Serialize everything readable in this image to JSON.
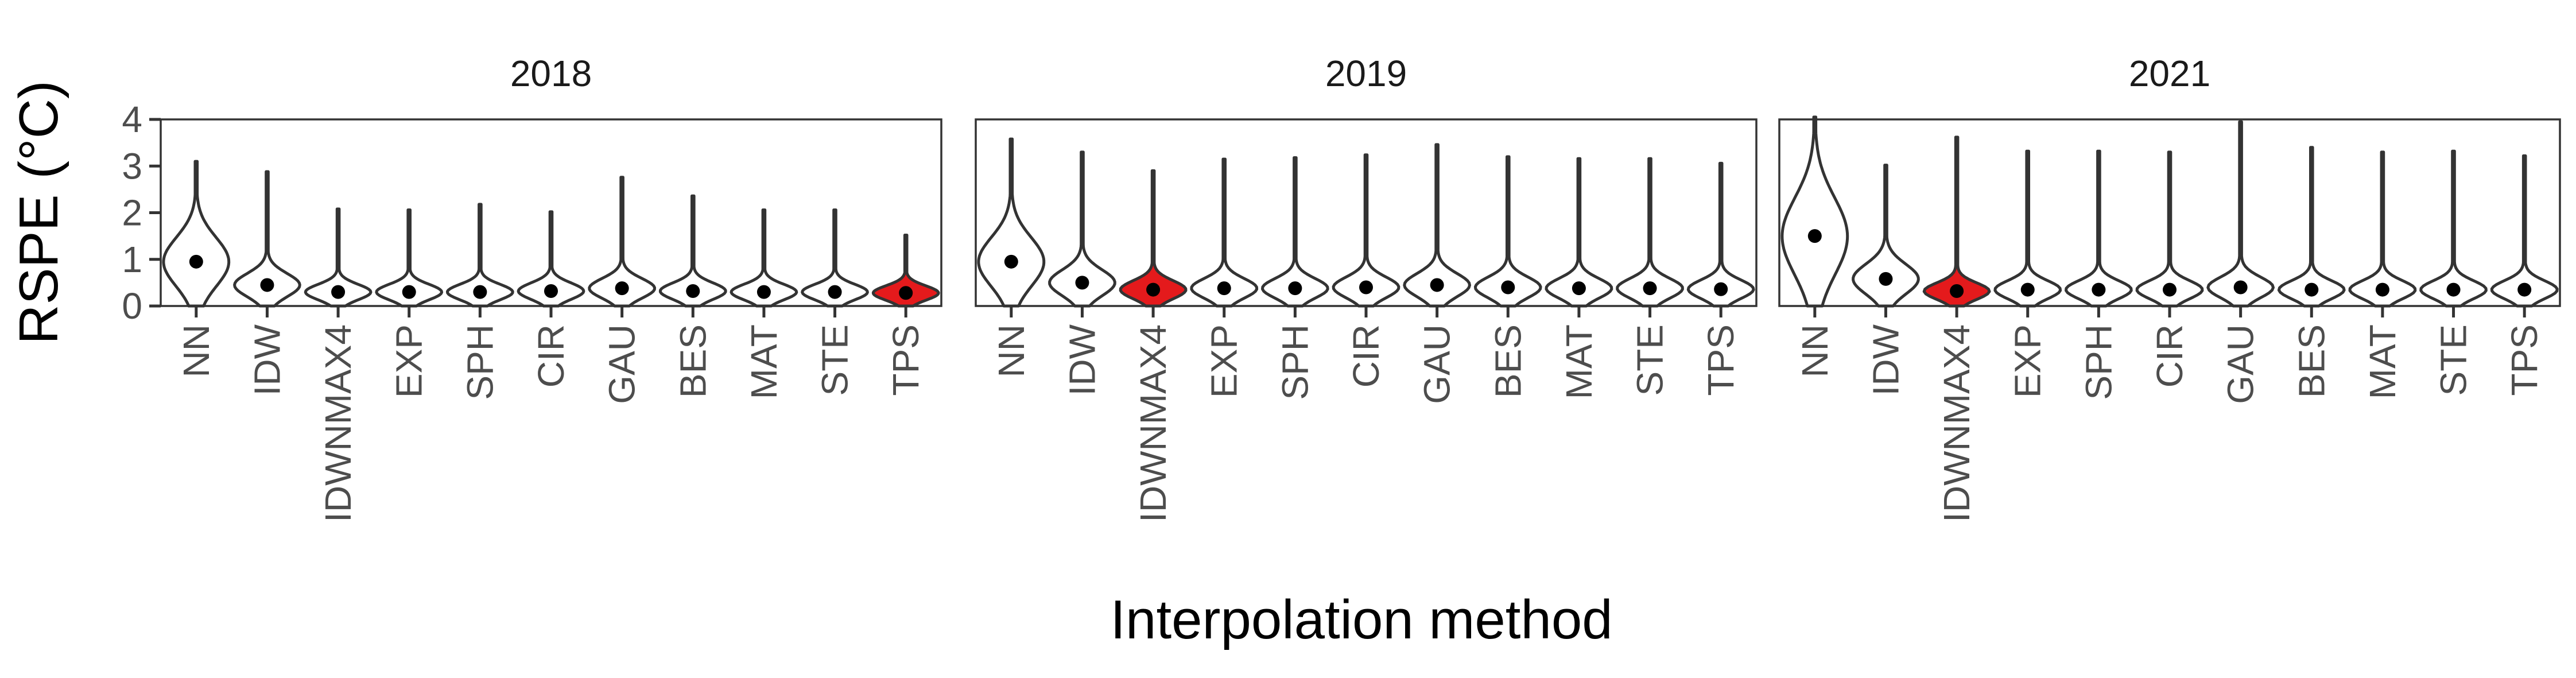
{
  "chart_data": {
    "type": "violin",
    "xlabel": "Interpolation method",
    "ylabel": "RSPE (°C)",
    "ylim": [
      0,
      4
    ],
    "yticks": [
      0,
      1,
      2,
      3,
      4
    ],
    "grid": false,
    "categories": [
      "NN",
      "IDW",
      "IDWNMAX4",
      "EXP",
      "SPH",
      "CIR",
      "GAU",
      "BES",
      "MAT",
      "STE",
      "TPS"
    ],
    "colors": {
      "highlight": "#e41a1c",
      "default_fill": "#ffffff",
      "outline": "#333333",
      "point": "#000000"
    },
    "panels": [
      {
        "title": "2018",
        "highlight": "TPS",
        "series": [
          {
            "category": "NN",
            "mean": 0.95,
            "max": 3.1
          },
          {
            "category": "IDW",
            "mean": 0.45,
            "max": 2.88
          },
          {
            "category": "IDWNMAX4",
            "mean": 0.3,
            "max": 2.08
          },
          {
            "category": "EXP",
            "mean": 0.3,
            "max": 2.06
          },
          {
            "category": "SPH",
            "mean": 0.3,
            "max": 2.18
          },
          {
            "category": "CIR",
            "mean": 0.32,
            "max": 2.02
          },
          {
            "category": "GAU",
            "mean": 0.38,
            "max": 2.76
          },
          {
            "category": "BES",
            "mean": 0.32,
            "max": 2.36
          },
          {
            "category": "MAT",
            "mean": 0.3,
            "max": 2.06
          },
          {
            "category": "STE",
            "mean": 0.3,
            "max": 2.06
          },
          {
            "category": "TPS",
            "mean": 0.28,
            "max": 1.52
          }
        ]
      },
      {
        "title": "2019",
        "highlight": "IDWNMAX4",
        "series": [
          {
            "category": "NN",
            "mean": 0.95,
            "max": 3.58
          },
          {
            "category": "IDW",
            "mean": 0.5,
            "max": 3.3
          },
          {
            "category": "IDWNMAX4",
            "mean": 0.35,
            "max": 2.9
          },
          {
            "category": "EXP",
            "mean": 0.38,
            "max": 3.15
          },
          {
            "category": "SPH",
            "mean": 0.38,
            "max": 3.18
          },
          {
            "category": "CIR",
            "mean": 0.4,
            "max": 3.24
          },
          {
            "category": "GAU",
            "mean": 0.45,
            "max": 3.46
          },
          {
            "category": "BES",
            "mean": 0.4,
            "max": 3.2
          },
          {
            "category": "MAT",
            "mean": 0.38,
            "max": 3.16
          },
          {
            "category": "STE",
            "mean": 0.38,
            "max": 3.16
          },
          {
            "category": "TPS",
            "mean": 0.36,
            "max": 3.06
          }
        ]
      },
      {
        "title": "2021",
        "highlight": "IDWNMAX4",
        "series": [
          {
            "category": "NN",
            "mean": 1.5,
            "max": 4.05
          },
          {
            "category": "IDW",
            "mean": 0.58,
            "max": 3.02
          },
          {
            "category": "IDWNMAX4",
            "mean": 0.32,
            "max": 3.62
          },
          {
            "category": "EXP",
            "mean": 0.35,
            "max": 3.32
          },
          {
            "category": "SPH",
            "mean": 0.35,
            "max": 3.32
          },
          {
            "category": "CIR",
            "mean": 0.35,
            "max": 3.3
          },
          {
            "category": "GAU",
            "mean": 0.4,
            "max": 3.95
          },
          {
            "category": "BES",
            "mean": 0.35,
            "max": 3.4
          },
          {
            "category": "MAT",
            "mean": 0.35,
            "max": 3.3
          },
          {
            "category": "STE",
            "mean": 0.35,
            "max": 3.32
          },
          {
            "category": "TPS",
            "mean": 0.35,
            "max": 3.22
          }
        ]
      }
    ]
  }
}
